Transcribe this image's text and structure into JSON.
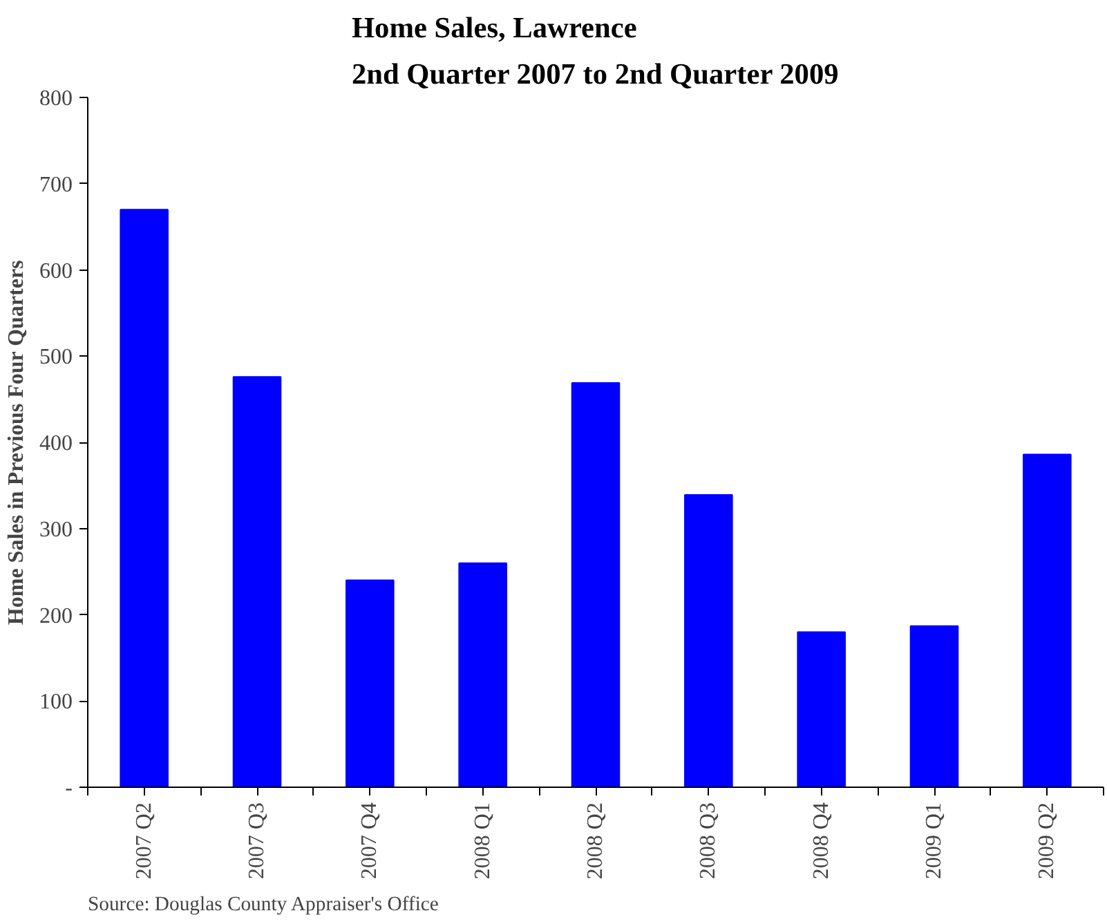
{
  "chart_data": {
    "type": "bar",
    "title": "Home Sales, Lawrence\n2nd Quarter 2007 to 2nd Quarter 2009",
    "ylabel": "Home Sales in Previous Four Quarters",
    "categories": [
      "2007 Q2",
      "2007 Q3",
      "2007 Q4",
      "2008 Q1",
      "2008 Q2",
      "2008 Q3",
      "2008 Q4",
      "2009 Q1",
      "2009 Q2"
    ],
    "values": [
      670,
      476,
      240,
      260,
      469,
      339,
      180,
      187,
      386
    ],
    "color": "#0000ff",
    "ylim": [
      0,
      800
    ],
    "yticks": [
      {
        "value": 0,
        "label": "-"
      },
      100,
      200,
      300,
      400,
      500,
      600,
      700,
      800
    ],
    "grid": false,
    "annotations": [
      "Source: Douglas County Appraiser's Office"
    ]
  }
}
